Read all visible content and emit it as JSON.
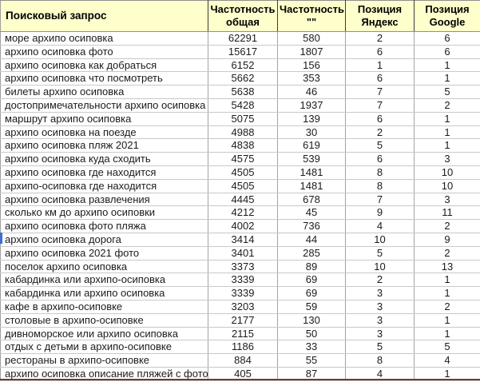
{
  "table": {
    "header": [
      {
        "line1": "Поисковый запрос",
        "line2": ""
      },
      {
        "line1": "Частотность",
        "line2": "общая"
      },
      {
        "line1": "Частотность",
        "line2": "\"\""
      },
      {
        "line1": "Позиция",
        "line2": "Яндекс"
      },
      {
        "line1": "Позиция",
        "line2": "Google"
      }
    ],
    "rows": [
      {
        "query": "море архипо осиповка",
        "freq_total": "62291",
        "freq_exact": "580",
        "pos_yandex": "2",
        "pos_google": "6"
      },
      {
        "query": "архипо осиповка фото",
        "freq_total": "15617",
        "freq_exact": "1807",
        "pos_yandex": "6",
        "pos_google": "6"
      },
      {
        "query": "архипо осиповка как добраться",
        "freq_total": "6152",
        "freq_exact": "156",
        "pos_yandex": "1",
        "pos_google": "1"
      },
      {
        "query": "архипо осиповка что посмотреть",
        "freq_total": "5662",
        "freq_exact": "353",
        "pos_yandex": "6",
        "pos_google": "1"
      },
      {
        "query": "билеты архипо осиповка",
        "freq_total": "5638",
        "freq_exact": "46",
        "pos_yandex": "7",
        "pos_google": "5"
      },
      {
        "query": "достопримечательности архипо осиповка",
        "freq_total": "5428",
        "freq_exact": "1937",
        "pos_yandex": "7",
        "pos_google": "2"
      },
      {
        "query": "маршрут архипо осиповка",
        "freq_total": "5075",
        "freq_exact": "139",
        "pos_yandex": "6",
        "pos_google": "1"
      },
      {
        "query": "архипо осиповка на поезде",
        "freq_total": "4988",
        "freq_exact": "30",
        "pos_yandex": "2",
        "pos_google": "1"
      },
      {
        "query": "архипо осиповка пляж 2021",
        "freq_total": "4838",
        "freq_exact": "619",
        "pos_yandex": "5",
        "pos_google": "1"
      },
      {
        "query": "архипо осиповка куда сходить",
        "freq_total": "4575",
        "freq_exact": "539",
        "pos_yandex": "6",
        "pos_google": "3"
      },
      {
        "query": "архипо осиповка где находится",
        "freq_total": "4505",
        "freq_exact": "1481",
        "pos_yandex": "8",
        "pos_google": "10"
      },
      {
        "query": "архипо-осиповка где находится",
        "freq_total": "4505",
        "freq_exact": "1481",
        "pos_yandex": "8",
        "pos_google": "10"
      },
      {
        "query": "архипо осиповка развлечения",
        "freq_total": "4445",
        "freq_exact": "678",
        "pos_yandex": "7",
        "pos_google": "3"
      },
      {
        "query": "сколько км до архипо осиповки",
        "freq_total": "4212",
        "freq_exact": "45",
        "pos_yandex": "9",
        "pos_google": "11"
      },
      {
        "query": "архипо осиповка фото пляжа",
        "freq_total": "4002",
        "freq_exact": "736",
        "pos_yandex": "4",
        "pos_google": "2"
      },
      {
        "query": "архипо осиповка дорога",
        "freq_total": "3414",
        "freq_exact": "44",
        "pos_yandex": "10",
        "pos_google": "9"
      },
      {
        "query": "архипо осиповка 2021 фото",
        "freq_total": "3401",
        "freq_exact": "285",
        "pos_yandex": "5",
        "pos_google": "2"
      },
      {
        "query": "поселок архипо осиповка",
        "freq_total": "3373",
        "freq_exact": "89",
        "pos_yandex": "10",
        "pos_google": "13"
      },
      {
        "query": "кабардинка или архипо-осиповка",
        "freq_total": "3339",
        "freq_exact": "69",
        "pos_yandex": "2",
        "pos_google": "1"
      },
      {
        "query": "кабардинка или архипо осиповка",
        "freq_total": "3339",
        "freq_exact": "69",
        "pos_yandex": "3",
        "pos_google": "1"
      },
      {
        "query": "кафе в архипо-осиповке",
        "freq_total": "3203",
        "freq_exact": "59",
        "pos_yandex": "3",
        "pos_google": "2"
      },
      {
        "query": "столовые в архипо-осиповке",
        "freq_total": "2177",
        "freq_exact": "130",
        "pos_yandex": "3",
        "pos_google": "1"
      },
      {
        "query": "дивноморское или архипо осиповка",
        "freq_total": "2115",
        "freq_exact": "50",
        "pos_yandex": "3",
        "pos_google": "1"
      },
      {
        "query": "отдых с детьми в архипо-осиповке",
        "freq_total": "1186",
        "freq_exact": "33",
        "pos_yandex": "5",
        "pos_google": "5"
      },
      {
        "query": "рестораны в архипо-осиповке",
        "freq_total": "884",
        "freq_exact": "55",
        "pos_yandex": "8",
        "pos_google": "4"
      },
      {
        "query": "архипо осиповка описание пляжей с фото",
        "freq_total": "405",
        "freq_exact": "87",
        "pos_yandex": "4",
        "pos_google": "1"
      }
    ]
  },
  "colors": {
    "header_bg": "#ffffcc",
    "grid_vertical": "#a3a3a3",
    "grid_horizontal": "#c9c9c9",
    "header_border": "#3c3c3c",
    "bottom_strip": "#6b3a33",
    "selection_tick": "#3b6fd4",
    "text": "#1b1b1b"
  }
}
